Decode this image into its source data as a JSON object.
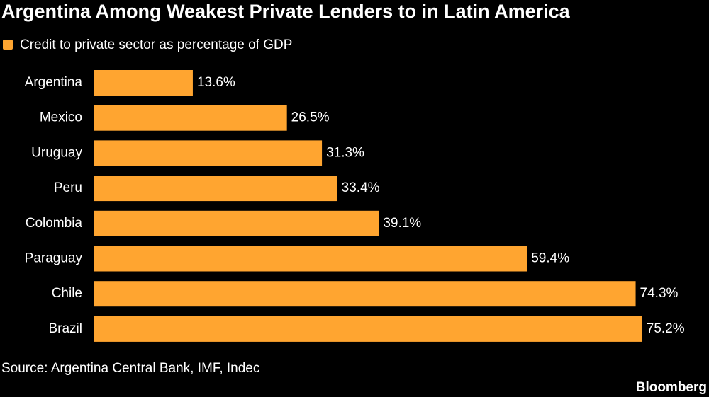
{
  "chart_data": {
    "type": "bar",
    "orientation": "horizontal",
    "title": "Argentina Among Weakest Private Lenders to in Latin America",
    "categories": [
      "Argentina",
      "Mexico",
      "Uruguay",
      "Peru",
      "Colombia",
      "Paraguay",
      "Chile",
      "Brazil"
    ],
    "series": [
      {
        "name": "Credit to private sector as percentage of GDP",
        "color": "#ffa530",
        "values": [
          13.6,
          26.5,
          31.3,
          33.4,
          39.1,
          59.4,
          74.3,
          75.2
        ],
        "value_labels": [
          "13.6%",
          "26.5%",
          "31.3%",
          "33.4%",
          "39.1%",
          "59.4%",
          "74.3%",
          "75.2%"
        ]
      }
    ],
    "source": "Source: Argentina Central Bank, IMF, Indec",
    "credit": "Bloomberg"
  }
}
